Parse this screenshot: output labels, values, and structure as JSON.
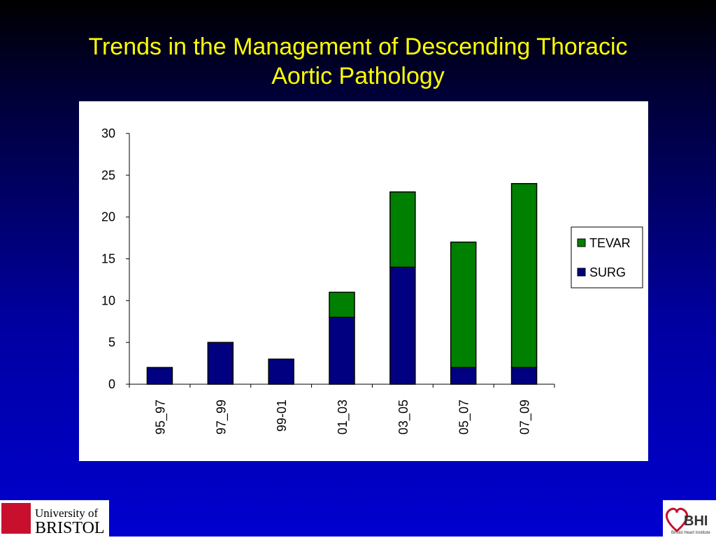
{
  "chart_data": {
    "type": "stacked-bar",
    "title": "Trends in the Management of Descending Thoracic Aortic Pathology",
    "categories": [
      "95_97",
      "97_99",
      "99-01",
      "01_03",
      "03_05",
      "05_07",
      "07_09"
    ],
    "series": [
      {
        "name": "SURG",
        "color": "#000080",
        "values": [
          2,
          5,
          3,
          8,
          14,
          2,
          2
        ]
      },
      {
        "name": "TEVAR",
        "color": "#008000",
        "values": [
          0,
          0,
          0,
          3,
          9,
          15,
          22
        ]
      }
    ],
    "ylim": [
      0,
      30
    ],
    "yticks": [
      0,
      5,
      10,
      15,
      20,
      25,
      30
    ],
    "grid": false,
    "legend": "right"
  },
  "logos": {
    "university": [
      "University of",
      "BRISTOL"
    ],
    "institute": [
      "BHI",
      "Bristol Heart Institute"
    ]
  }
}
